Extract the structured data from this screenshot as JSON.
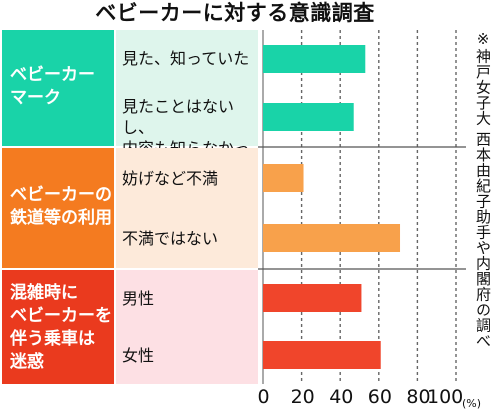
{
  "title": "ベビーカーに対する意識調査",
  "note": "※神戸女子大 西本由紀子助手や内閣府の調べ",
  "colors": {
    "teal": "#19d3a8",
    "teal_light": "#def5ec",
    "orange": "#f47b20",
    "orange_bar": "#f8a14b",
    "orange_light": "#fdeada",
    "red": "#ea3a1e",
    "red_bar": "#f0452b",
    "red_light": "#fde0e4"
  },
  "groups": [
    {
      "label": "ベビーカー\nマーク",
      "color_key": "teal"
    },
    {
      "label": "ベビーカーの\n鉄道等の利用",
      "color_key": "orange"
    },
    {
      "label": "混雑時に\nベビーカーを\n伴う乗車は\n迷惑",
      "color_key": "red"
    }
  ],
  "categories": [
    "見た、知っていた",
    "見たことはないし、\n内容も知らなかった",
    "妨げなど不満",
    "不満ではない",
    "男性",
    "女性"
  ],
  "chart_data": {
    "type": "bar",
    "orientation": "horizontal",
    "title": "ベビーカーに対する意識調査",
    "categories": [
      "見た、知っていた",
      "見たことはないし、内容も知らなかった",
      "妨げなど不満",
      "不満ではない",
      "男性",
      "女性"
    ],
    "groups": [
      "ベビーカーマーク",
      "ベビーカーの鉄道等の利用",
      "混雑時にベビーカーを伴う乗車は迷惑"
    ],
    "values": [
      53,
      47,
      21,
      71,
      51,
      61
    ],
    "unit": "%",
    "xlim": [
      0,
      100
    ],
    "xticks": [
      "0",
      "20",
      "40",
      "60",
      "80",
      "100"
    ],
    "tick_unit": "(%)",
    "grid": true
  }
}
